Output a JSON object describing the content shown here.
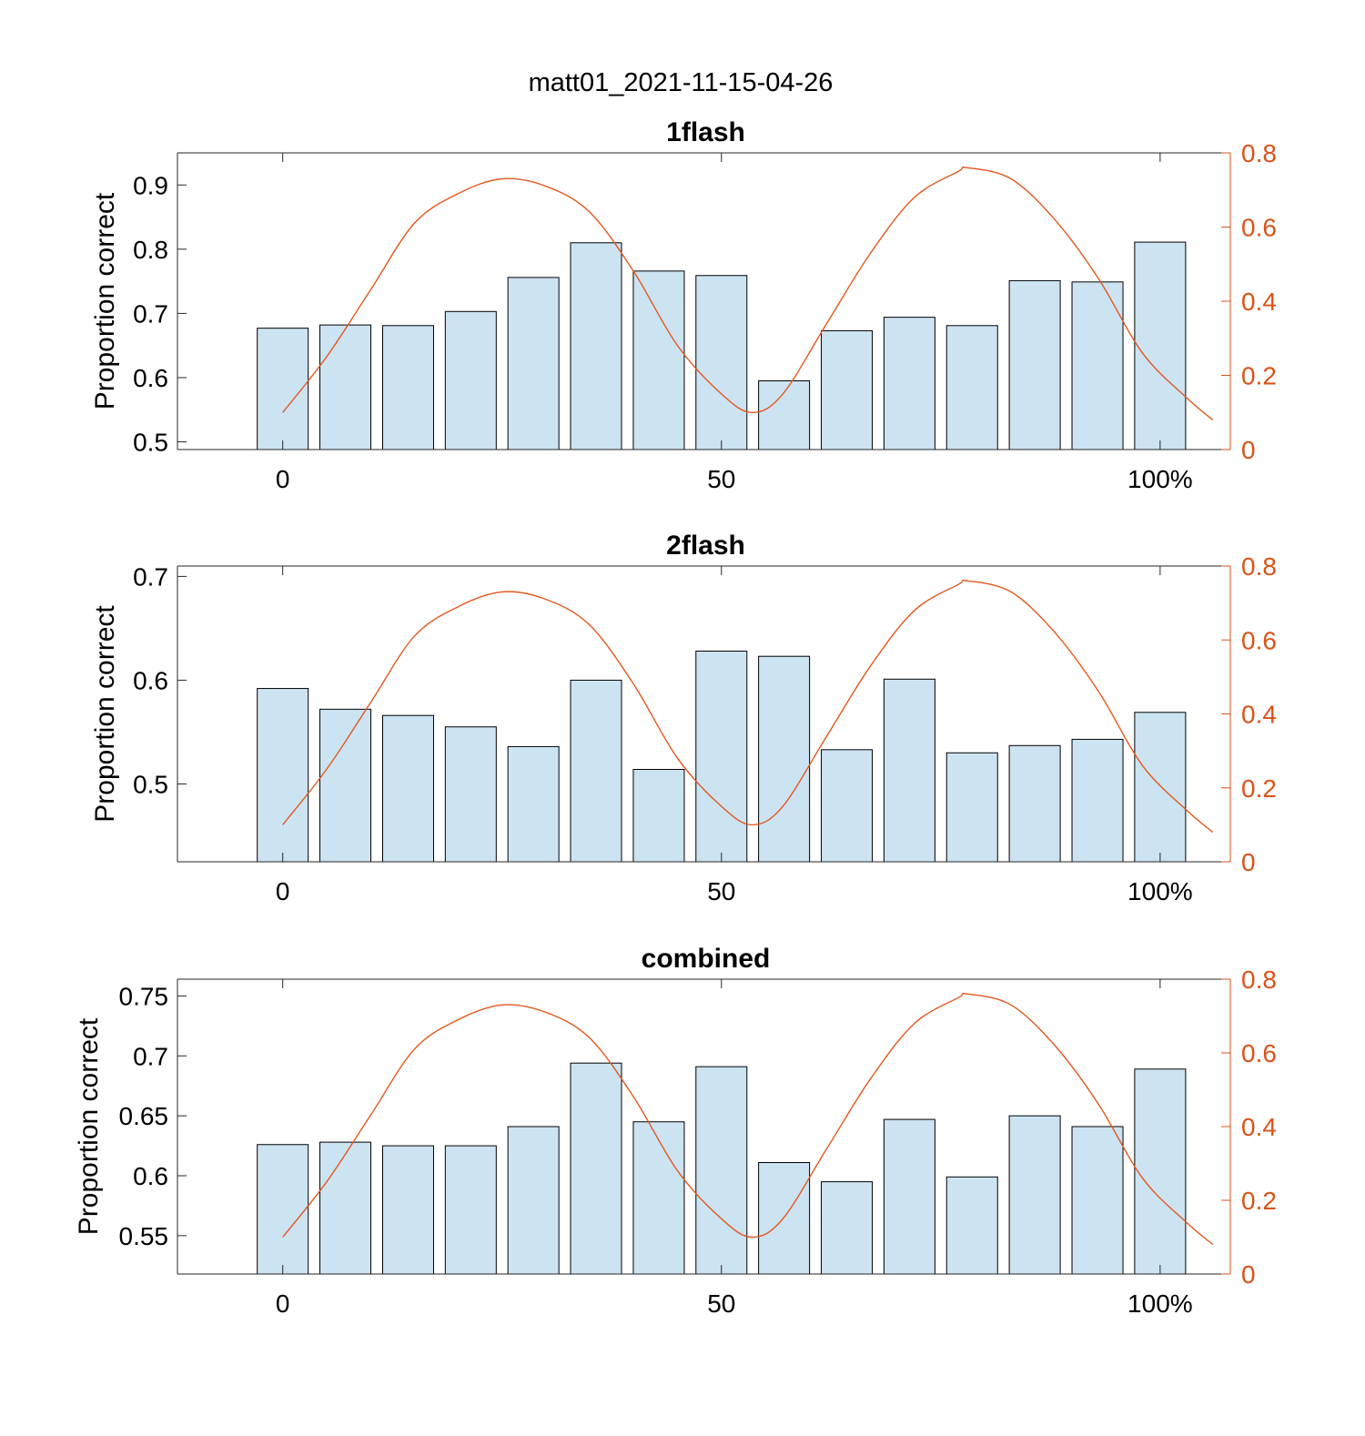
{
  "figure": {
    "title": "matt01_2021-11-15-04-26"
  },
  "colors": {
    "bar_fill": "#cce3f2",
    "bar_edge": "#000000",
    "line": "#e2581e",
    "right_axis": "#d95319",
    "axis": "#262626"
  },
  "chart_data": [
    {
      "type": "bar",
      "title": "1flash",
      "ylabel": "Proportion correct",
      "x": [
        0,
        7.14,
        14.29,
        21.43,
        28.57,
        35.71,
        42.86,
        50,
        57.14,
        64.29,
        71.43,
        78.57,
        85.71,
        92.86,
        100
      ],
      "values": [
        0.677,
        0.682,
        0.681,
        0.703,
        0.756,
        0.81,
        0.766,
        0.759,
        0.595,
        0.673,
        0.694,
        0.681,
        0.751,
        0.749,
        0.811
      ],
      "xlim": [
        -12,
        108
      ],
      "ylim": [
        0.488,
        0.95
      ],
      "xticks": [
        {
          "value": 0,
          "label": "0"
        },
        {
          "value": 50,
          "label": "50"
        },
        {
          "value": 100,
          "label": "100%"
        }
      ],
      "yticks": [
        {
          "value": 0.5,
          "label": "0.5"
        },
        {
          "value": 0.6,
          "label": "0.6"
        },
        {
          "value": 0.7,
          "label": "0.7"
        },
        {
          "value": 0.8,
          "label": "0.8"
        },
        {
          "value": 0.9,
          "label": "0.9"
        }
      ],
      "y2lim": [
        0,
        0.8
      ],
      "y2ticks": [
        {
          "value": 0,
          "label": "0"
        },
        {
          "value": 0.2,
          "label": "0.2"
        },
        {
          "value": 0.4,
          "label": "0.4"
        },
        {
          "value": 0.6,
          "label": "0.6"
        },
        {
          "value": 0.8,
          "label": "0.8"
        }
      ],
      "line": {
        "x": [
          0,
          5,
          10,
          15,
          20,
          25,
          30,
          35,
          40,
          45,
          50,
          53.5,
          57,
          62,
          67,
          72,
          77,
          78,
          83,
          88,
          93,
          98,
          103,
          106
        ],
        "y": [
          0.1,
          0.25,
          0.43,
          0.61,
          0.69,
          0.73,
          0.71,
          0.64,
          0.48,
          0.28,
          0.15,
          0.1,
          0.15,
          0.34,
          0.53,
          0.68,
          0.75,
          0.76,
          0.73,
          0.62,
          0.46,
          0.26,
          0.14,
          0.08
        ]
      }
    },
    {
      "type": "bar",
      "title": "2flash",
      "ylabel": "Proportion correct",
      "x": [
        0,
        7.14,
        14.29,
        21.43,
        28.57,
        35.71,
        42.86,
        50,
        57.14,
        64.29,
        71.43,
        78.57,
        85.71,
        92.86,
        100
      ],
      "values": [
        0.592,
        0.572,
        0.566,
        0.555,
        0.536,
        0.6,
        0.514,
        0.628,
        0.623,
        0.533,
        0.601,
        0.53,
        0.537,
        0.543,
        0.569
      ],
      "xlim": [
        -12,
        108
      ],
      "ylim": [
        0.425,
        0.71
      ],
      "xticks": [
        {
          "value": 0,
          "label": "0"
        },
        {
          "value": 50,
          "label": "50"
        },
        {
          "value": 100,
          "label": "100%"
        }
      ],
      "yticks": [
        {
          "value": 0.5,
          "label": "0.5"
        },
        {
          "value": 0.6,
          "label": "0.6"
        },
        {
          "value": 0.7,
          "label": "0.7"
        }
      ],
      "y2lim": [
        0,
        0.8
      ],
      "y2ticks": [
        {
          "value": 0,
          "label": "0"
        },
        {
          "value": 0.2,
          "label": "0.2"
        },
        {
          "value": 0.4,
          "label": "0.4"
        },
        {
          "value": 0.6,
          "label": "0.6"
        },
        {
          "value": 0.8,
          "label": "0.8"
        }
      ],
      "line": {
        "x": [
          0,
          5,
          10,
          15,
          20,
          25,
          30,
          35,
          40,
          45,
          50,
          53.5,
          57,
          62,
          67,
          72,
          77,
          78,
          83,
          88,
          93,
          98,
          103,
          106
        ],
        "y": [
          0.1,
          0.25,
          0.43,
          0.61,
          0.69,
          0.73,
          0.71,
          0.64,
          0.48,
          0.28,
          0.15,
          0.1,
          0.15,
          0.34,
          0.53,
          0.68,
          0.75,
          0.76,
          0.73,
          0.62,
          0.46,
          0.26,
          0.14,
          0.08
        ]
      }
    },
    {
      "type": "bar",
      "title": "combined",
      "ylabel": "Proportion correct",
      "x": [
        0,
        7.14,
        14.29,
        21.43,
        28.57,
        35.71,
        42.86,
        50,
        57.14,
        64.29,
        71.43,
        78.57,
        85.71,
        92.86,
        100
      ],
      "values": [
        0.626,
        0.628,
        0.625,
        0.625,
        0.641,
        0.694,
        0.645,
        0.691,
        0.611,
        0.595,
        0.647,
        0.599,
        0.65,
        0.641,
        0.689
      ],
      "xlim": [
        -12,
        108
      ],
      "ylim": [
        0.518,
        0.764
      ],
      "xticks": [
        {
          "value": 0,
          "label": "0"
        },
        {
          "value": 50,
          "label": "50"
        },
        {
          "value": 100,
          "label": "100%"
        }
      ],
      "yticks": [
        {
          "value": 0.55,
          "label": "0.55"
        },
        {
          "value": 0.6,
          "label": "0.6"
        },
        {
          "value": 0.65,
          "label": "0.65"
        },
        {
          "value": 0.7,
          "label": "0.7"
        },
        {
          "value": 0.75,
          "label": "0.75"
        }
      ],
      "y2lim": [
        0,
        0.8
      ],
      "y2ticks": [
        {
          "value": 0,
          "label": "0"
        },
        {
          "value": 0.2,
          "label": "0.2"
        },
        {
          "value": 0.4,
          "label": "0.4"
        },
        {
          "value": 0.6,
          "label": "0.6"
        },
        {
          "value": 0.8,
          "label": "0.8"
        }
      ],
      "line": {
        "x": [
          0,
          5,
          10,
          15,
          20,
          25,
          30,
          35,
          40,
          45,
          50,
          53.5,
          57,
          62,
          67,
          72,
          77,
          78,
          83,
          88,
          93,
          98,
          103,
          106
        ],
        "y": [
          0.1,
          0.25,
          0.43,
          0.61,
          0.69,
          0.73,
          0.71,
          0.64,
          0.48,
          0.28,
          0.15,
          0.1,
          0.15,
          0.34,
          0.53,
          0.68,
          0.75,
          0.76,
          0.73,
          0.62,
          0.46,
          0.26,
          0.14,
          0.08
        ]
      }
    }
  ]
}
